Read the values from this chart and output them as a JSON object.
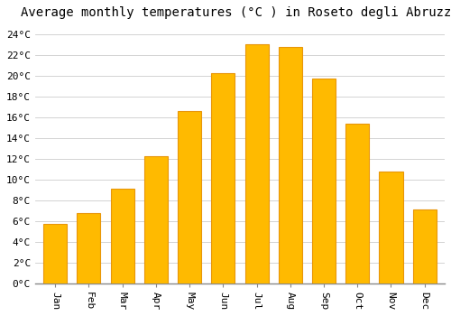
{
  "title": "Average monthly temperatures (°C ) in Roseto degli Abruzzi",
  "months": [
    "Jan",
    "Feb",
    "Mar",
    "Apr",
    "May",
    "Jun",
    "Jul",
    "Aug",
    "Sep",
    "Oct",
    "Nov",
    "Dec"
  ],
  "values": [
    5.7,
    6.8,
    9.1,
    12.2,
    16.6,
    20.2,
    23.0,
    22.8,
    19.7,
    15.4,
    10.8,
    7.1
  ],
  "bar_color": "#FFBA00",
  "bar_edge_color": "#E8960A",
  "background_color": "#FFFFFF",
  "grid_color": "#CCCCCC",
  "ylim": [
    0,
    25
  ],
  "ytick_step": 2,
  "title_fontsize": 10,
  "tick_fontsize": 8,
  "font_family": "monospace"
}
